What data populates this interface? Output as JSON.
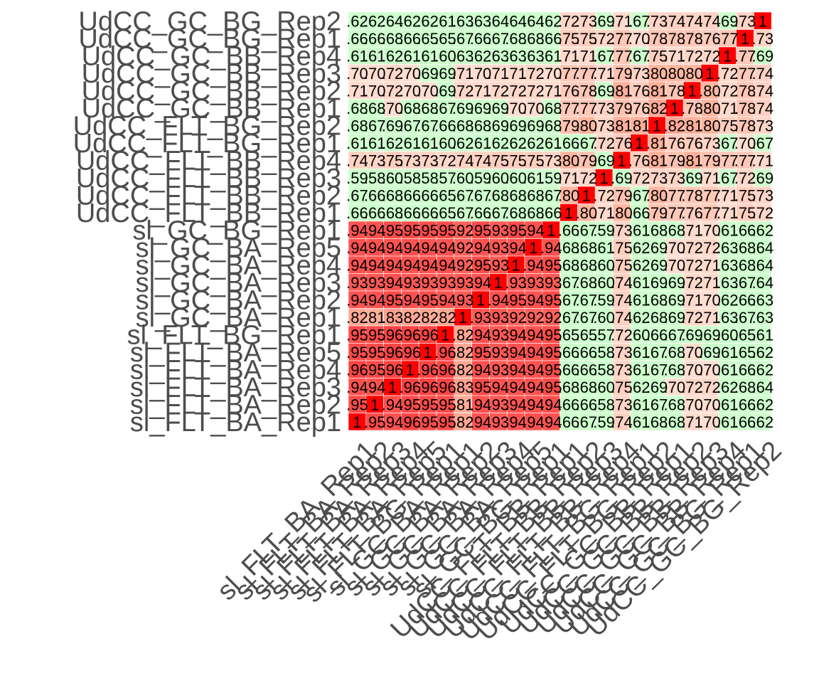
{
  "chart_data": {
    "type": "heatmap",
    "title": "",
    "xlabel": "",
    "ylabel": "",
    "columns": [
      "sl_FLT_BA_Rep1",
      "sl_FLT_BA_Rep2",
      "sl_FLT_BA_Rep3",
      "sl_FLT_BA_Rep4",
      "sl_FLT_BA_Rep5",
      "sl_FLT_BG_Rep1",
      "sl_GC_BA_Rep1",
      "sl_GC_BA_Rep2",
      "sl_GC_BA_Rep3",
      "sl_GC_BA_Rep4",
      "sl_GC_BA_Rep5",
      "sl_GC_BG_Rep1",
      "UdCC_FLT_BB_Rep1",
      "UdCC_FLT_BB_Rep2",
      "UdCC_FLT_BB_Rep3",
      "UdCC_FLT_BB_Rep4",
      "UdCC_FLT_BG_Rep1",
      "UdCC_FLT_BG_Rep2",
      "UdCC_GC_BB_Rep1",
      "UdCC_GC_BB_Rep2",
      "UdCC_GC_BB_Rep3",
      "UdCC_GC_BB_Rep4",
      "UdCC_GC_BG_Rep1",
      "UdCC_GC_BG_Rep2"
    ],
    "rows": [
      "UdCC_GC_BG_Rep2",
      "UdCC_GC_BG_Rep1",
      "UdCC_GC_BB_Rep4",
      "UdCC_GC_BB_Rep3",
      "UdCC_GC_BB_Rep2",
      "UdCC_GC_BB_Rep1",
      "UdCC_FLT_BG_Rep2",
      "UdCC_FLT_BG_Rep1",
      "UdCC_FLT_BB_Rep4",
      "UdCC_FLT_BB_Rep3",
      "UdCC_FLT_BB_Rep2",
      "UdCC_FLT_BB_Rep1",
      "sl_GC_BG_Rep1",
      "sl_GC_BA_Rep5",
      "sl_GC_BA_Rep4",
      "sl_GC_BA_Rep3",
      "sl_GC_BA_Rep2",
      "sl_GC_BA_Rep1",
      "sl_FLT_BG_Rep1",
      "sl_FLT_BA_Rep5",
      "sl_FLT_BA_Rep4",
      "sl_FLT_BA_Rep3",
      "sl_FLT_BA_Rep2",
      "sl_FLT_BA_Rep1"
    ],
    "values": [
      [
        0.62,
        0.62,
        0.64,
        0.62,
        0.62,
        0.61,
        0.63,
        0.63,
        0.64,
        0.64,
        0.64,
        0.62,
        0.72,
        0.73,
        0.69,
        0.71,
        0.67,
        0.73,
        0.74,
        0.74,
        0.74,
        0.69,
        0.73,
        1
      ],
      [
        0.66,
        0.66,
        0.68,
        0.66,
        0.65,
        0.65,
        0.67,
        0.66,
        0.67,
        0.68,
        0.68,
        0.66,
        0.75,
        0.75,
        0.72,
        0.77,
        0.7,
        0.78,
        0.78,
        0.78,
        0.76,
        0.77,
        1,
        0.73
      ],
      [
        0.61,
        0.61,
        0.62,
        0.61,
        0.61,
        0.6,
        0.63,
        0.62,
        0.63,
        0.63,
        0.63,
        0.61,
        0.71,
        0.71,
        0.67,
        0.77,
        0.67,
        0.75,
        0.71,
        0.72,
        0.72,
        1,
        0.77,
        0.69
      ],
      [
        0.7,
        0.7,
        0.72,
        0.7,
        0.69,
        0.69,
        0.71,
        0.7,
        0.71,
        0.71,
        0.72,
        0.7,
        0.77,
        0.77,
        0.71,
        0.79,
        0.73,
        0.8,
        0.8,
        0.8,
        1,
        0.72,
        0.77,
        0.74
      ],
      [
        0.71,
        0.7,
        0.72,
        0.7,
        0.7,
        0.69,
        0.72,
        0.71,
        0.72,
        0.72,
        0.72,
        0.71,
        0.76,
        0.78,
        0.69,
        0.81,
        0.76,
        0.81,
        0.78,
        1,
        0.8,
        0.72,
        0.78,
        0.74
      ],
      [
        0.68,
        0.68,
        0.7,
        0.68,
        0.68,
        0.67,
        0.69,
        0.69,
        0.69,
        0.7,
        0.7,
        0.68,
        0.77,
        0.77,
        0.73,
        0.79,
        0.76,
        0.82,
        1,
        0.78,
        0.8,
        0.71,
        0.78,
        0.74
      ],
      [
        0.68,
        0.67,
        0.69,
        0.67,
        0.67,
        0.66,
        0.68,
        0.68,
        0.69,
        0.69,
        0.69,
        0.68,
        0.79,
        0.8,
        0.73,
        0.81,
        0.81,
        1,
        0.82,
        0.81,
        0.8,
        0.75,
        0.78,
        0.73
      ],
      [
        0.61,
        0.61,
        0.62,
        0.61,
        0.61,
        0.6,
        0.62,
        0.61,
        0.62,
        0.62,
        0.62,
        0.61,
        0.66,
        0.67,
        0.72,
        0.76,
        1,
        0.81,
        0.76,
        0.76,
        0.73,
        0.67,
        0.7,
        0.67
      ],
      [
        0.74,
        0.73,
        0.75,
        0.73,
        0.73,
        0.72,
        0.74,
        0.74,
        0.75,
        0.75,
        0.75,
        0.73,
        0.8,
        0.79,
        0.69,
        1,
        0.76,
        0.81,
        0.79,
        0.81,
        0.79,
        0.77,
        0.77,
        0.71
      ],
      [
        0.59,
        0.58,
        0.6,
        0.58,
        0.58,
        0.57,
        0.6,
        0.59,
        0.6,
        0.6,
        0.61,
        0.59,
        0.71,
        0.72,
        1,
        0.69,
        0.72,
        0.73,
        0.73,
        0.69,
        0.71,
        0.67,
        0.72,
        0.69
      ],
      [
        0.67,
        0.66,
        0.68,
        0.66,
        0.66,
        0.65,
        0.67,
        0.67,
        0.68,
        0.68,
        0.68,
        0.67,
        0.8,
        1,
        0.72,
        0.79,
        0.67,
        0.8,
        0.77,
        0.78,
        0.77,
        0.71,
        0.75,
        0.73
      ],
      [
        0.66,
        0.66,
        0.68,
        0.66,
        0.66,
        0.65,
        0.67,
        0.66,
        0.67,
        0.68,
        0.68,
        0.66,
        1,
        0.8,
        0.71,
        0.8,
        0.66,
        0.79,
        0.77,
        0.76,
        0.77,
        0.71,
        0.75,
        0.72
      ],
      [
        0.94,
        0.94,
        0.95,
        0.95,
        0.95,
        0.95,
        0.92,
        0.95,
        0.93,
        0.95,
        0.94,
        1,
        0.66,
        0.67,
        0.59,
        0.73,
        0.61,
        0.68,
        0.68,
        0.71,
        0.7,
        0.61,
        0.66,
        0.62
      ],
      [
        0.94,
        0.94,
        0.94,
        0.94,
        0.94,
        0.94,
        0.92,
        0.94,
        0.93,
        0.94,
        1,
        0.94,
        0.68,
        0.68,
        0.61,
        0.75,
        0.62,
        0.69,
        0.7,
        0.72,
        0.72,
        0.63,
        0.68,
        0.64
      ],
      [
        0.94,
        0.94,
        0.94,
        0.94,
        0.94,
        0.94,
        0.92,
        0.95,
        0.93,
        1,
        0.94,
        0.95,
        0.68,
        0.68,
        0.6,
        0.75,
        0.62,
        0.69,
        0.7,
        0.72,
        0.71,
        0.63,
        0.68,
        0.64
      ],
      [
        0.93,
        0.93,
        0.94,
        0.93,
        0.93,
        0.93,
        0.93,
        0.94,
        1,
        0.93,
        0.93,
        0.93,
        0.67,
        0.68,
        0.6,
        0.74,
        0.61,
        0.69,
        0.69,
        0.72,
        0.71,
        0.63,
        0.67,
        0.64
      ],
      [
        0.94,
        0.94,
        0.95,
        0.94,
        0.95,
        0.94,
        0.93,
        1,
        0.94,
        0.95,
        0.94,
        0.95,
        0.67,
        0.67,
        0.59,
        0.74,
        0.61,
        0.68,
        0.69,
        0.71,
        0.7,
        0.62,
        0.66,
        0.63
      ],
      [
        0.82,
        0.81,
        0.83,
        0.82,
        0.82,
        0.82,
        1,
        0.93,
        0.93,
        0.92,
        0.92,
        0.92,
        0.67,
        0.67,
        0.6,
        0.74,
        0.62,
        0.68,
        0.69,
        0.72,
        0.71,
        0.63,
        0.67,
        0.63
      ],
      [
        0.95,
        0.95,
        0.96,
        0.96,
        0.96,
        1,
        0.82,
        0.94,
        0.93,
        0.94,
        0.94,
        0.95,
        0.65,
        0.65,
        0.57,
        0.72,
        0.6,
        0.66,
        0.67,
        0.69,
        0.69,
        0.6,
        0.65,
        0.61
      ],
      [
        0.95,
        0.95,
        0.96,
        0.96,
        1,
        0.96,
        0.82,
        0.95,
        0.93,
        0.94,
        0.94,
        0.95,
        0.66,
        0.66,
        0.58,
        0.73,
        0.61,
        0.67,
        0.68,
        0.7,
        0.69,
        0.61,
        0.65,
        0.62
      ],
      [
        0.96,
        0.95,
        0.96,
        1,
        0.96,
        0.96,
        0.82,
        0.94,
        0.93,
        0.94,
        0.94,
        0.95,
        0.66,
        0.66,
        0.58,
        0.73,
        0.61,
        0.67,
        0.68,
        0.7,
        0.7,
        0.61,
        0.66,
        0.62
      ],
      [
        0.94,
        0.94,
        1,
        0.96,
        0.96,
        0.96,
        0.83,
        0.95,
        0.94,
        0.94,
        0.94,
        0.95,
        0.68,
        0.68,
        0.6,
        0.75,
        0.62,
        0.69,
        0.7,
        0.72,
        0.72,
        0.62,
        0.68,
        0.64
      ],
      [
        0.95,
        1,
        0.94,
        0.95,
        0.95,
        0.95,
        0.81,
        0.94,
        0.93,
        0.94,
        0.94,
        0.94,
        0.66,
        0.66,
        0.58,
        0.73,
        0.61,
        0.67,
        0.68,
        0.7,
        0.7,
        0.61,
        0.66,
        0.62
      ],
      [
        1,
        0.95,
        0.94,
        0.96,
        0.95,
        0.95,
        0.82,
        0.94,
        0.93,
        0.94,
        0.94,
        0.94,
        0.66,
        0.67,
        0.59,
        0.74,
        0.61,
        0.68,
        0.68,
        0.71,
        0.7,
        0.61,
        0.66,
        0.62
      ]
    ],
    "value_labels_shown": true,
    "colors": {
      "low": "#ccffcc",
      "mid": "#ffddd0",
      "high": "#ff4444",
      "diagonal": "#ff0000"
    },
    "grid": false,
    "legend": "none"
  }
}
